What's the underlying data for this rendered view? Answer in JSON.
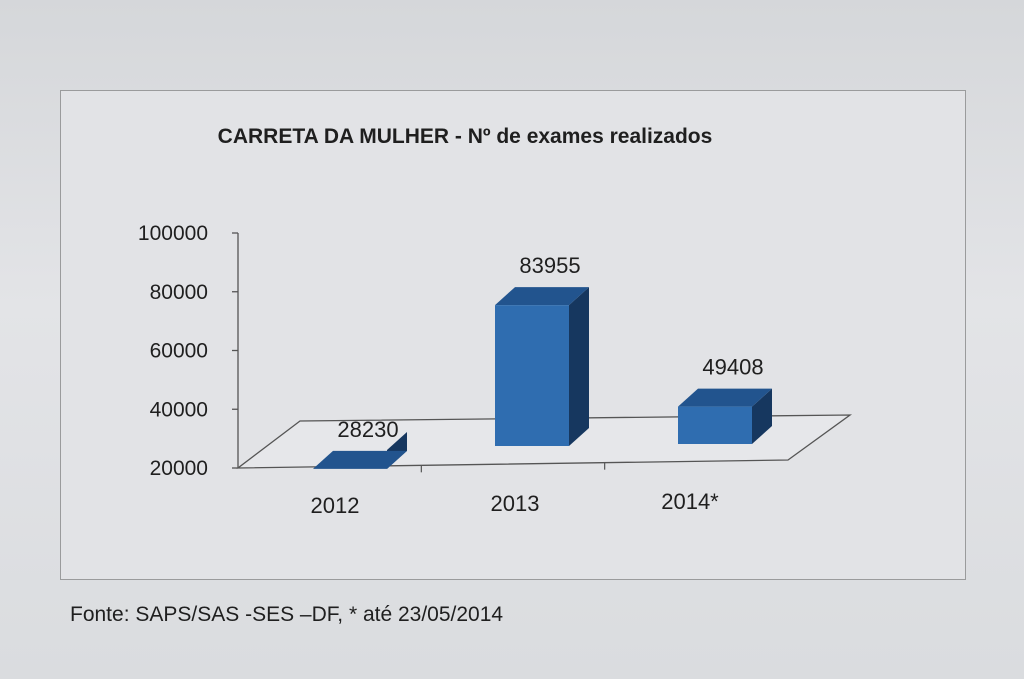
{
  "chart_data": {
    "type": "bar",
    "title": "CARRETA DA MULHER - Nº de exames realizados",
    "categories": [
      "2012",
      "2013",
      "2014*"
    ],
    "values": [
      28230,
      83955,
      49408
    ],
    "data_labels": [
      "28230",
      "83955",
      "49408"
    ],
    "y_ticks": [
      "100000",
      "80000",
      "60000",
      "40000",
      "20000"
    ],
    "ylim": [
      20000,
      100000
    ],
    "grid": false,
    "legend": "none",
    "style": "3d-column",
    "bar_color": "#2f6db0"
  },
  "source_note": "Fonte: SAPS/SAS -SES –DF, * até 23/05/2014"
}
